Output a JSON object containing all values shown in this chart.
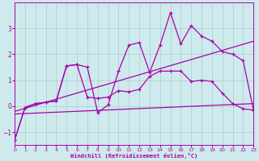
{
  "xlabel": "Windchill (Refroidissement éolien,°C)",
  "background_color": "#ceeaec",
  "line_color": "#aa00aa",
  "grid_color": "#aacdd0",
  "xlim": [
    0,
    23
  ],
  "ylim": [
    -1.5,
    4.0
  ],
  "yticks": [
    -1,
    0,
    1,
    2,
    3
  ],
  "xticks": [
    0,
    1,
    2,
    3,
    4,
    5,
    6,
    7,
    8,
    9,
    10,
    11,
    12,
    13,
    14,
    15,
    16,
    17,
    18,
    19,
    20,
    21,
    22,
    23
  ],
  "series": {
    "line1": {
      "x": [
        0,
        1,
        2,
        3,
        4,
        5,
        6,
        7,
        8,
        9,
        10,
        11,
        12,
        13,
        14,
        15,
        16,
        17,
        18,
        19,
        20,
        21,
        22,
        23
      ],
      "y": [
        -1.3,
        -0.05,
        0.1,
        0.15,
        0.2,
        1.55,
        1.6,
        1.5,
        -0.25,
        0.05,
        1.35,
        2.35,
        2.45,
        1.3,
        2.35,
        3.6,
        2.4,
        3.1,
        2.7,
        2.5,
        2.1,
        2.0,
        1.75,
        -0.15
      ]
    },
    "line2": {
      "x": [
        0,
        1,
        2,
        3,
        4,
        5,
        6,
        7,
        8,
        9,
        10,
        11,
        12,
        13,
        14,
        15,
        16,
        17,
        18,
        19,
        20,
        21,
        22,
        23
      ],
      "y": [
        -1.3,
        -0.05,
        0.1,
        0.15,
        0.2,
        1.55,
        1.6,
        0.35,
        0.3,
        0.35,
        0.6,
        0.55,
        0.65,
        1.15,
        1.35,
        1.35,
        1.35,
        0.95,
        1.0,
        0.95,
        0.5,
        0.1,
        -0.1,
        -0.15
      ]
    },
    "line3": {
      "x": [
        0,
        23
      ],
      "y": [
        -0.2,
        2.5
      ]
    },
    "line4": {
      "x": [
        0,
        23
      ],
      "y": [
        -0.3,
        0.1
      ]
    }
  }
}
